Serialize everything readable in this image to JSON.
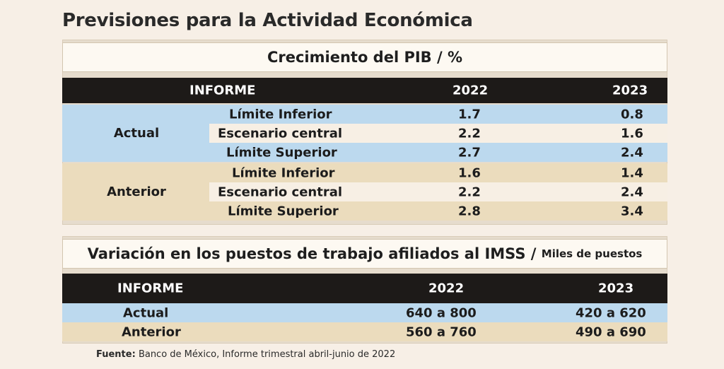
{
  "title": "Previsiones para la Actividad Económica",
  "pib": {
    "subtitle": "Crecimiento del PIB",
    "unit": "/ %",
    "headers": {
      "informe": "INFORME",
      "y2022": "2022",
      "y2023": "2023"
    },
    "groups": [
      {
        "label": "Actual",
        "rows": [
          {
            "label": "Límite Inferior",
            "v2022": "1.7",
            "v2023": "0.8"
          },
          {
            "label": "Escenario central",
            "v2022": "2.2",
            "v2023": "1.6"
          },
          {
            "label": "Límite Superior",
            "v2022": "2.7",
            "v2023": "2.4"
          }
        ]
      },
      {
        "label": "Anterior",
        "rows": [
          {
            "label": "Límite Inferior",
            "v2022": "1.6",
            "v2023": "1.4"
          },
          {
            "label": "Escenario central",
            "v2022": "2.2",
            "v2023": "2.4"
          },
          {
            "label": "Límite Superior",
            "v2022": "2.8",
            "v2023": "3.4"
          }
        ]
      }
    ]
  },
  "imss": {
    "subtitle": "Variación en los puestos de trabajo afiliados al IMSS",
    "unit_slash": "/",
    "unit": "Miles de puestos",
    "headers": {
      "informe": "INFORME",
      "y2022": "2022",
      "y2023": "2023"
    },
    "rows": [
      {
        "label": "Actual",
        "v2022": "640 a 800",
        "v2023": "420 a 620"
      },
      {
        "label": "Anterior",
        "v2022": "560 a 760",
        "v2023": "490 a 690"
      }
    ]
  },
  "source": {
    "label": "Fuente:",
    "text": "Banco de México, Informe trimestral abril-junio de 2022"
  }
}
